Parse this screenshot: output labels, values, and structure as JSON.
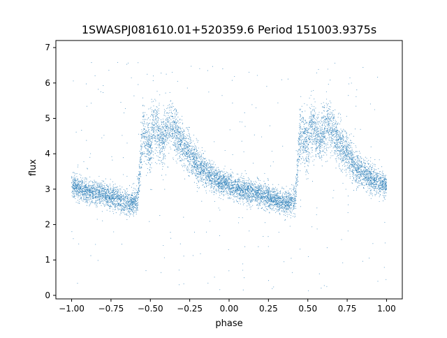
{
  "chart_data": {
    "type": "scatter",
    "title": "1SWASPJ081610.01+520359.6 Period 151003.9375s",
    "xlabel": "phase",
    "ylabel": "flux",
    "xlim": [
      -1.1,
      1.1
    ],
    "ylim": [
      -0.1,
      7.2
    ],
    "xticks": [
      -1.0,
      -0.75,
      -0.5,
      -0.25,
      0.0,
      0.25,
      0.5,
      0.75,
      1.0
    ],
    "xtick_labels": [
      "−1.00",
      "−0.75",
      "−0.50",
      "−0.25",
      "0.00",
      "0.25",
      "0.50",
      "0.75",
      "1.00"
    ],
    "yticks": [
      0,
      1,
      2,
      3,
      4,
      5,
      6,
      7
    ],
    "ytick_labels": [
      "0",
      "1",
      "2",
      "3",
      "4",
      "5",
      "6",
      "7"
    ],
    "grid": false,
    "legend": "none",
    "point_color": "#1f77b4",
    "phase_range": [
      -1.0,
      1.0
    ],
    "profile": {
      "phase": [
        0.0,
        0.05,
        0.1,
        0.15,
        0.2,
        0.25,
        0.3,
        0.33,
        0.36,
        0.4,
        0.42,
        0.45,
        0.48,
        0.5,
        0.52,
        0.55,
        0.58,
        0.6,
        0.63,
        0.66,
        0.7,
        0.75,
        0.8,
        0.85,
        0.9,
        0.95,
        1.0
      ],
      "flux": [
        3.1,
        3.0,
        2.95,
        2.9,
        2.85,
        2.8,
        2.7,
        2.65,
        2.6,
        2.65,
        2.7,
        4.6,
        4.4,
        4.2,
        4.8,
        4.6,
        4.4,
        4.6,
        4.9,
        4.6,
        4.3,
        4.0,
        3.7,
        3.5,
        3.3,
        3.2,
        3.1
      ],
      "spread": [
        0.3,
        0.3,
        0.3,
        0.3,
        0.3,
        0.3,
        0.3,
        0.3,
        0.3,
        0.3,
        0.35,
        0.6,
        0.7,
        0.8,
        0.7,
        0.6,
        0.6,
        0.6,
        0.6,
        0.6,
        0.55,
        0.5,
        0.45,
        0.4,
        0.35,
        0.3,
        0.3
      ]
    },
    "outlier_range": [
      0.1,
      6.7
    ]
  }
}
